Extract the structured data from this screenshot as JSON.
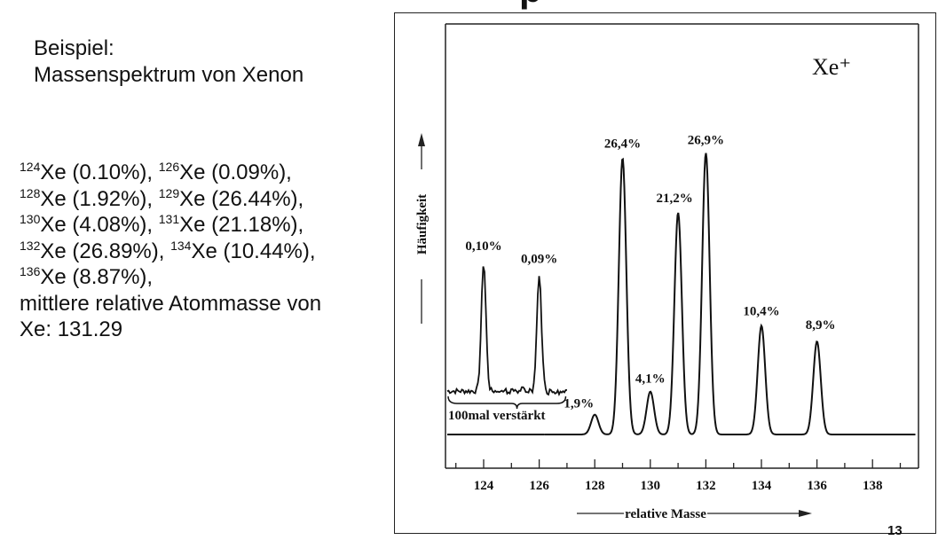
{
  "slide": {
    "title_fragment": "p",
    "caption_line1": "Beispiel:",
    "caption_line2": "Massenspektrum von Xenon",
    "isotope_lines": [
      [
        {
          "mass": "124",
          "text": "Xe (0.10%), "
        },
        {
          "mass": "126",
          "text": "Xe (0.09%),"
        }
      ],
      [
        {
          "mass": "128",
          "text": "Xe (1.92%), "
        },
        {
          "mass": "129",
          "text": "Xe (26.44%),"
        }
      ],
      [
        {
          "mass": "130",
          "text": "Xe (4.08%), "
        },
        {
          "mass": "131",
          "text": "Xe (21.18%),"
        }
      ],
      [
        {
          "mass": "132",
          "text": "Xe (26.89%), "
        },
        {
          "mass": "134",
          "text": "Xe (10.44%),"
        }
      ],
      [
        {
          "mass": "136",
          "text": "Xe (8.87%),"
        }
      ]
    ],
    "note_line1": "mittlere relative Atommasse von",
    "note_line2": "Xe:  131.29",
    "page_number": "13"
  },
  "chart_data": {
    "type": "line",
    "title": "Xe⁺",
    "xlabel": "relative  Masse",
    "ylabel": "Häufigkeit",
    "xlim": [
      122.5,
      140
    ],
    "xticks": [
      124,
      126,
      128,
      130,
      132,
      134,
      136,
      138
    ],
    "peaks": [
      {
        "mass": 128,
        "percent": 1.9,
        "label": "1,9%"
      },
      {
        "mass": 129,
        "percent": 26.4,
        "label": "26,4%"
      },
      {
        "mass": 130,
        "percent": 4.1,
        "label": "4,1%"
      },
      {
        "mass": 131,
        "percent": 21.2,
        "label": "21,2%"
      },
      {
        "mass": 132,
        "percent": 26.9,
        "label": "26,9%"
      },
      {
        "mass": 134,
        "percent": 10.4,
        "label": "10,4%"
      },
      {
        "mass": 136,
        "percent": 8.9,
        "label": "8,9%"
      }
    ],
    "amplified": {
      "label": "100mal verstärkt",
      "factor": 100,
      "peaks": [
        {
          "mass": 124,
          "percent": 0.1,
          "label": "0,10%"
        },
        {
          "mass": 126,
          "percent": 0.09,
          "label": "0,09%"
        }
      ]
    },
    "grid": false,
    "legend": "none"
  }
}
